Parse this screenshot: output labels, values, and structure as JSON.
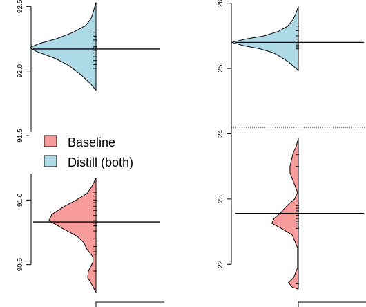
{
  "chart_data": [
    {
      "type": "violin",
      "panel": "left",
      "ylim": [
        90.3,
        92.55
      ],
      "yticks": [
        90.5,
        91.0,
        91.5,
        92.0,
        92.5
      ],
      "ytick_labels": [
        "90.5",
        "91.0",
        "91.5",
        "92.0",
        "92.5"
      ],
      "series": [
        {
          "name": "Distill (both)",
          "color": "#add8e6",
          "mean": 92.17,
          "range": [
            91.85,
            92.53
          ],
          "density": [
            [
              91.85,
              0.0
            ],
            [
              91.9,
              0.07
            ],
            [
              91.95,
              0.16
            ],
            [
              92.0,
              0.26
            ],
            [
              92.05,
              0.38
            ],
            [
              92.1,
              0.55
            ],
            [
              92.15,
              0.78
            ],
            [
              92.18,
              0.87
            ],
            [
              92.21,
              0.76
            ],
            [
              92.25,
              0.52
            ],
            [
              92.3,
              0.3
            ],
            [
              92.35,
              0.14
            ],
            [
              92.4,
              0.07
            ],
            [
              92.45,
              0.04
            ],
            [
              92.5,
              0.015
            ],
            [
              92.53,
              0.0
            ]
          ],
          "points": [
            92.02,
            92.05,
            92.08,
            92.11,
            92.14,
            92.16,
            92.17,
            92.18,
            92.19,
            92.21,
            92.24,
            92.27,
            92.3
          ]
        },
        {
          "name": "Baseline",
          "color": "#f89b9b",
          "mean": 90.83,
          "range": [
            90.28,
            91.17
          ],
          "density": [
            [
              90.28,
              0.0
            ],
            [
              90.33,
              0.04
            ],
            [
              90.4,
              0.11
            ],
            [
              90.45,
              0.1
            ],
            [
              90.52,
              0.04
            ],
            [
              90.56,
              0.04
            ],
            [
              90.62,
              0.12
            ],
            [
              90.67,
              0.16
            ],
            [
              90.72,
              0.25
            ],
            [
              90.78,
              0.44
            ],
            [
              90.84,
              0.62
            ],
            [
              90.89,
              0.58
            ],
            [
              90.95,
              0.42
            ],
            [
              91.0,
              0.26
            ],
            [
              91.05,
              0.12
            ],
            [
              91.1,
              0.06
            ],
            [
              91.17,
              0.0
            ]
          ],
          "points": [
            90.45,
            90.58,
            90.6,
            90.64,
            90.7,
            90.76,
            90.8,
            90.82,
            90.84,
            90.88,
            90.92,
            90.95,
            90.98,
            91.0,
            91.03,
            91.06
          ]
        }
      ],
      "legend": {
        "placement": "left",
        "entries": [
          {
            "label": "Baseline",
            "color": "#f89b9b"
          },
          {
            "label": "Distill (both)",
            "color": "#add8e6"
          }
        ]
      }
    },
    {
      "type": "violin",
      "panel": "right",
      "ylim": [
        21.6,
        26.05
      ],
      "yticks": [
        22,
        23,
        24,
        25,
        26
      ],
      "ytick_labels": [
        "22",
        "23",
        "24",
        "25",
        "26"
      ],
      "reference_line": 24.1,
      "series": [
        {
          "name": "Distill (both)",
          "color": "#add8e6",
          "mean": 25.4,
          "range": [
            24.97,
            25.95
          ],
          "density": [
            [
              24.97,
              0.0
            ],
            [
              25.03,
              0.06
            ],
            [
              25.1,
              0.13
            ],
            [
              25.17,
              0.22
            ],
            [
              25.24,
              0.33
            ],
            [
              25.3,
              0.5
            ],
            [
              25.35,
              0.72
            ],
            [
              25.4,
              0.88
            ],
            [
              25.45,
              0.7
            ],
            [
              25.5,
              0.45
            ],
            [
              25.57,
              0.26
            ],
            [
              25.65,
              0.14
            ],
            [
              25.75,
              0.07
            ],
            [
              25.85,
              0.03
            ],
            [
              25.95,
              0.0
            ]
          ],
          "points": [
            25.3,
            25.33,
            25.36,
            25.38,
            25.4,
            25.42,
            25.45,
            25.5,
            25.58,
            25.65
          ]
        },
        {
          "name": "Baseline",
          "color": "#f89b9b",
          "mean": 22.78,
          "range": [
            21.62,
            23.93
          ],
          "density": [
            [
              21.62,
              0.0
            ],
            [
              21.65,
              0.08
            ],
            [
              21.72,
              0.13
            ],
            [
              21.8,
              0.06
            ],
            [
              21.95,
              0.01
            ],
            [
              22.25,
              0.01
            ],
            [
              22.45,
              0.08
            ],
            [
              22.56,
              0.24
            ],
            [
              22.63,
              0.35
            ],
            [
              22.7,
              0.32
            ],
            [
              22.78,
              0.24
            ],
            [
              22.86,
              0.18
            ],
            [
              22.93,
              0.12
            ],
            [
              23.0,
              0.05
            ],
            [
              23.1,
              0.01
            ],
            [
              23.25,
              0.06
            ],
            [
              23.4,
              0.11
            ],
            [
              23.5,
              0.11
            ],
            [
              23.6,
              0.09
            ],
            [
              23.7,
              0.07
            ],
            [
              23.8,
              0.03
            ],
            [
              23.93,
              0.0
            ]
          ],
          "points": [
            21.7,
            22.55,
            22.6,
            22.63,
            22.66,
            22.7,
            22.75,
            22.78,
            22.82,
            22.86,
            22.9,
            22.94,
            23.5,
            23.68
          ]
        }
      ]
    }
  ]
}
